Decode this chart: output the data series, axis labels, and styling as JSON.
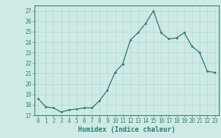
{
  "x": [
    0,
    1,
    2,
    3,
    4,
    5,
    6,
    7,
    8,
    9,
    10,
    11,
    12,
    13,
    14,
    15,
    16,
    17,
    18,
    19,
    20,
    21,
    22,
    23
  ],
  "y": [
    18.6,
    17.8,
    17.7,
    17.3,
    17.5,
    17.6,
    17.7,
    17.7,
    18.4,
    19.4,
    21.1,
    21.9,
    24.2,
    24.9,
    25.8,
    27.0,
    24.9,
    24.3,
    24.4,
    24.9,
    23.6,
    23.0,
    21.2,
    21.1
  ],
  "line_color": "#2e7d6e",
  "marker": "o",
  "marker_size": 2.0,
  "linewidth": 1.0,
  "bg_color": "#ceeae6",
  "grid_color": "#b0d8d4",
  "xlabel": "Humidex (Indice chaleur)",
  "ylim": [
    17,
    27.5
  ],
  "xlim": [
    -0.5,
    23.5
  ],
  "yticks": [
    17,
    18,
    19,
    20,
    21,
    22,
    23,
    24,
    25,
    26,
    27
  ],
  "xticks": [
    0,
    1,
    2,
    3,
    4,
    5,
    6,
    7,
    8,
    9,
    10,
    11,
    12,
    13,
    14,
    15,
    16,
    17,
    18,
    19,
    20,
    21,
    22,
    23
  ],
  "tick_label_fontsize": 5.5,
  "xlabel_fontsize": 7.0,
  "axis_color": "#2e7d6e",
  "spine_color": "#2e7d6e"
}
